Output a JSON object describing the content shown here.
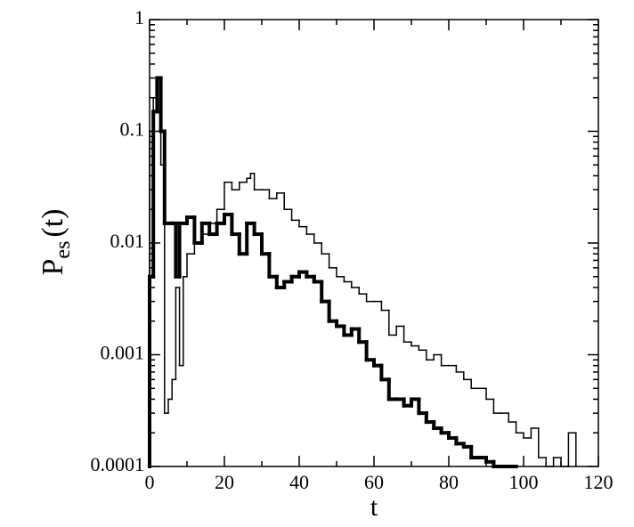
{
  "chart_data": {
    "type": "step",
    "xlabel": "t",
    "ylabel_parts": [
      "P",
      "es",
      "(t)"
    ],
    "log_y": true,
    "xlim": [
      0,
      120
    ],
    "xticks": [
      0,
      20,
      40,
      60,
      80,
      100,
      120
    ],
    "ylim": [
      0.0001,
      1
    ],
    "yticks": [
      0.0001,
      0.001,
      0.01,
      0.1,
      1
    ],
    "series": [
      {
        "color": "#000000",
        "width": 1.5,
        "x": [
          0,
          1,
          2,
          3,
          4,
          5,
          6,
          7,
          8,
          9,
          10,
          12,
          14,
          16,
          18,
          20,
          22,
          24,
          26,
          27,
          28,
          30,
          32,
          34,
          36,
          38,
          40,
          42,
          44,
          46,
          48,
          50,
          52,
          54,
          56,
          58,
          60,
          62,
          64,
          66,
          68,
          70,
          72,
          74,
          76,
          78,
          80,
          82,
          84,
          86,
          88,
          90,
          92,
          94,
          96,
          98,
          100,
          102,
          104,
          106,
          108,
          110,
          112
        ],
        "values": [
          0.1,
          0.2,
          0.3,
          0.05,
          0.0003,
          0.0004,
          0.0006,
          0.004,
          0.0008,
          0.005,
          0.008,
          0.01,
          0.012,
          0.015,
          0.02,
          0.035,
          0.03,
          0.035,
          0.038,
          0.042,
          0.03,
          0.03,
          0.025,
          0.028,
          0.02,
          0.016,
          0.014,
          0.012,
          0.01,
          0.008,
          0.006,
          0.005,
          0.0045,
          0.004,
          0.0035,
          0.003,
          0.003,
          0.0025,
          0.0015,
          0.0018,
          0.0013,
          0.0012,
          0.0011,
          0.0009,
          0.001,
          0.0008,
          0.0008,
          0.0007,
          0.0006,
          0.0005,
          0.0005,
          0.0004,
          0.0003,
          0.0003,
          0.00025,
          0.0002,
          0.00018,
          0.00022,
          0.00012,
          0.0001,
          0.00012,
          0.0001,
          0.0002
        ]
      },
      {
        "color": "#000000",
        "width": 4,
        "x": [
          0,
          1,
          2,
          3,
          4,
          6,
          7,
          8,
          10,
          12,
          14,
          16,
          18,
          20,
          22,
          24,
          26,
          28,
          30,
          32,
          34,
          36,
          38,
          40,
          42,
          44,
          46,
          48,
          50,
          52,
          54,
          56,
          58,
          60,
          62,
          64,
          66,
          68,
          70,
          72,
          74,
          76,
          78,
          80,
          82,
          84,
          86,
          88,
          90,
          92,
          94,
          96
        ],
        "values": [
          0.005,
          0.15,
          0.3,
          0.1,
          0.015,
          0.015,
          0.005,
          0.015,
          0.017,
          0.01,
          0.015,
          0.012,
          0.015,
          0.018,
          0.012,
          0.008,
          0.015,
          0.012,
          0.008,
          0.005,
          0.004,
          0.0045,
          0.005,
          0.0055,
          0.005,
          0.0045,
          0.003,
          0.002,
          0.0018,
          0.0015,
          0.0017,
          0.0013,
          0.0009,
          0.0008,
          0.0006,
          0.0004,
          0.0004,
          0.00035,
          0.0004,
          0.0003,
          0.00025,
          0.00022,
          0.0002,
          0.00018,
          0.00016,
          0.00015,
          0.00012,
          0.00012,
          0.00011,
          0.0001,
          0.0001,
          0.0001
        ]
      }
    ]
  }
}
